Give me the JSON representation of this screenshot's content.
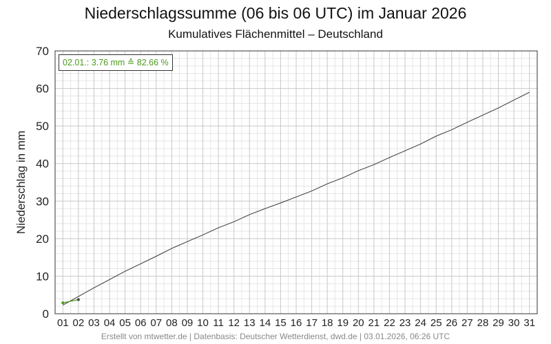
{
  "header": {
    "title": "Niederschlagssumme (06 bis 06 UTC) im Januar 2026",
    "subtitle": "Kumulatives Flächenmittel – Deutschland"
  },
  "infobox": {
    "text": "02.01.: 3.76 mm ≙ 82.66 %"
  },
  "footer": {
    "text": "Erstellt von mtwetter.de | Datenbasis: Deutscher Wetterdienst, dwd.de | 03.01.2026, 06:26 UTC"
  },
  "colors": {
    "climatology": "#333333",
    "current": "#4a9a1a",
    "grid_major": "#c8c8c8",
    "grid_minor": "#e6e6e6"
  },
  "chart_data": {
    "type": "line",
    "title": "Niederschlagssumme (06 bis 06 UTC) im Januar 2026",
    "subtitle": "Kumulatives Flächenmittel – Deutschland",
    "xlabel": "",
    "ylabel": "Niederschlag in mm",
    "xlim": [
      0.5,
      31.5
    ],
    "ylim": [
      0,
      70
    ],
    "x_ticks": [
      "01",
      "02",
      "03",
      "04",
      "05",
      "06",
      "07",
      "08",
      "09",
      "10",
      "11",
      "12",
      "13",
      "14",
      "15",
      "16",
      "17",
      "18",
      "19",
      "20",
      "21",
      "22",
      "23",
      "24",
      "25",
      "26",
      "27",
      "28",
      "29",
      "30",
      "31"
    ],
    "y_ticks": [
      0,
      10,
      20,
      30,
      40,
      50,
      60,
      70
    ],
    "grid": true,
    "series": [
      {
        "x": [
          1,
          2,
          3,
          4,
          5,
          6,
          7,
          8,
          9,
          10,
          11,
          12,
          13,
          14,
          15,
          16,
          17,
          18,
          19,
          20,
          21,
          22,
          23,
          24,
          25,
          26,
          27,
          28,
          29,
          30,
          31
        ],
        "values": [
          2.3,
          4.6,
          6.9,
          9.1,
          11.3,
          13.3,
          15.3,
          17.4,
          19.2,
          21.0,
          22.9,
          24.5,
          26.4,
          28.0,
          29.5,
          31.1,
          32.7,
          34.6,
          36.2,
          38.1,
          39.7,
          41.6,
          43.4,
          45.2,
          47.3,
          49.0,
          51.0,
          52.9,
          54.8,
          56.9,
          59.0
        ]
      },
      {
        "x": [
          1,
          2
        ],
        "values": [
          2.9,
          3.76
        ]
      }
    ]
  }
}
